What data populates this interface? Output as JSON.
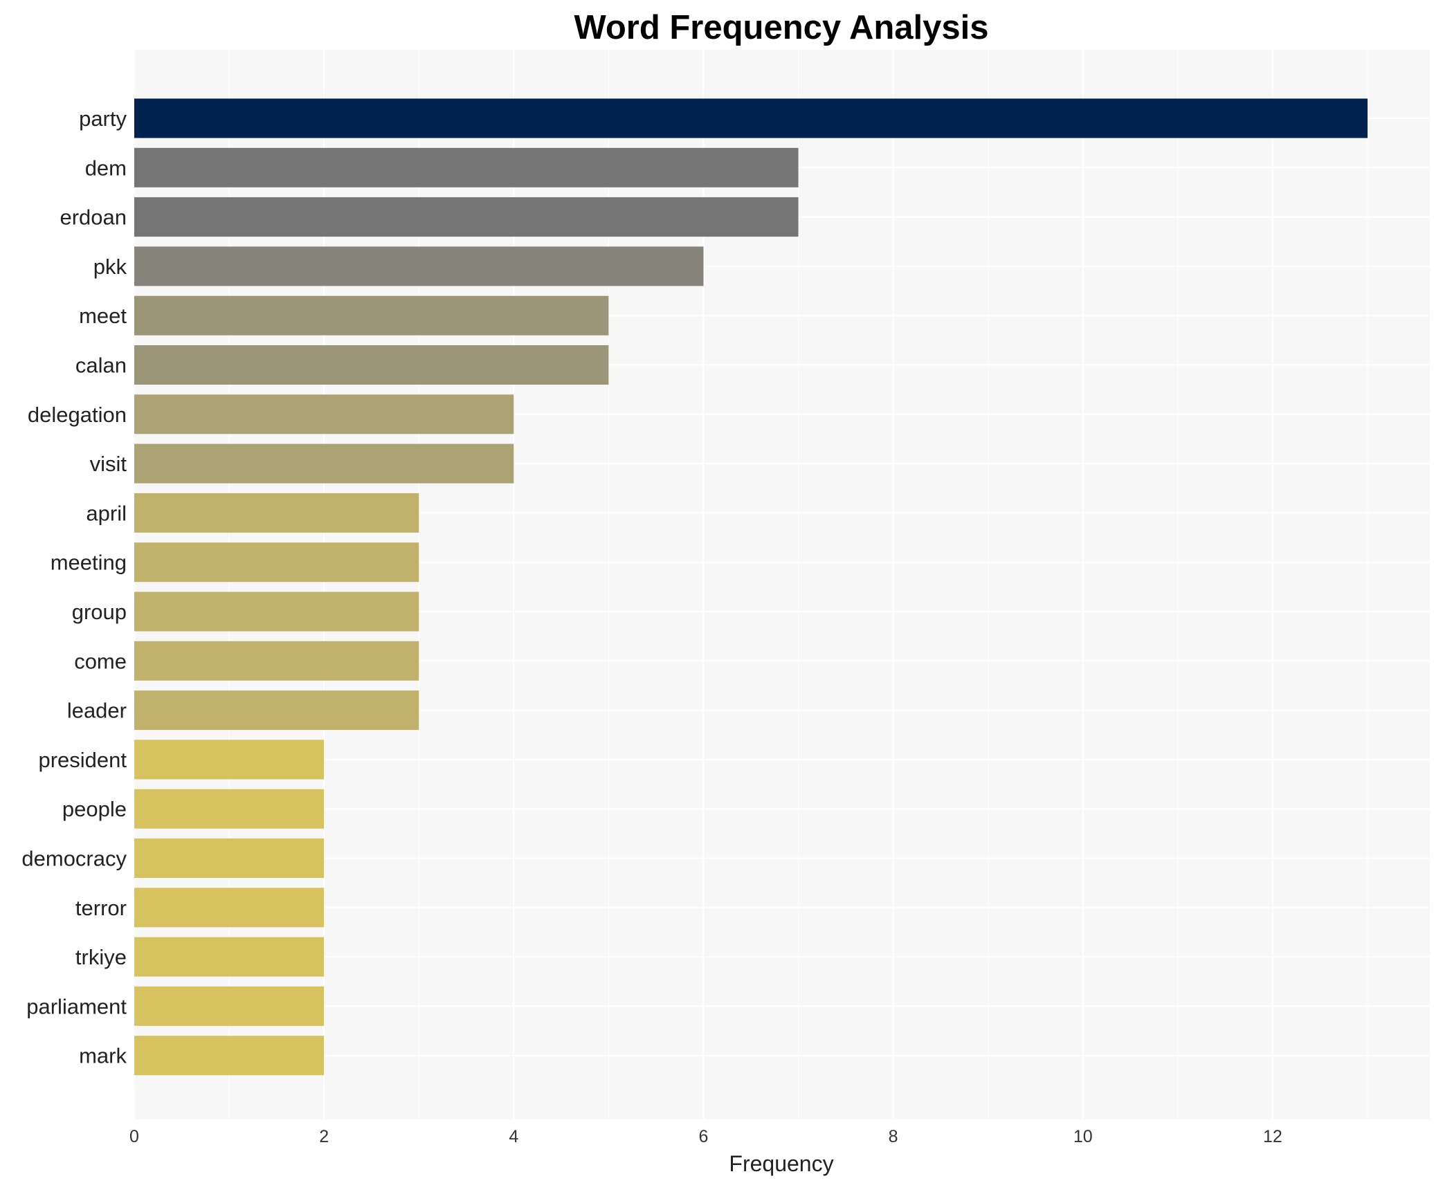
{
  "chart_data": {
    "type": "bar",
    "orientation": "horizontal",
    "title": "Word Frequency Analysis",
    "xlabel": "Frequency",
    "ylabel": "",
    "xlim": [
      0,
      13.6
    ],
    "xticks": [
      0,
      2,
      4,
      6,
      8,
      10,
      12
    ],
    "grid": true,
    "legend": "none",
    "categories": [
      "party",
      "dem",
      "erdoan",
      "pkk",
      "meet",
      "calan",
      "delegation",
      "visit",
      "april",
      "meeting",
      "group",
      "come",
      "leader",
      "president",
      "people",
      "democracy",
      "terror",
      "trkiye",
      "parliament",
      "mark"
    ],
    "values": [
      13,
      7,
      7,
      6,
      5,
      5,
      4,
      4,
      3,
      3,
      3,
      3,
      3,
      2,
      2,
      2,
      2,
      2,
      2,
      2
    ],
    "colors": [
      "#00224e",
      "#757575",
      "#757575",
      "#85837a",
      "#9a9677",
      "#9a9677",
      "#aca374",
      "#aca374",
      "#c1b26b",
      "#c1b26b",
      "#c1b26b",
      "#c1b26b",
      "#c1b26b",
      "#d6c25f",
      "#d6c25f",
      "#d6c25f",
      "#d6c25f",
      "#d6c25f",
      "#d6c25f",
      "#d6c25f"
    ],
    "background_color": "#f7f7f7"
  }
}
